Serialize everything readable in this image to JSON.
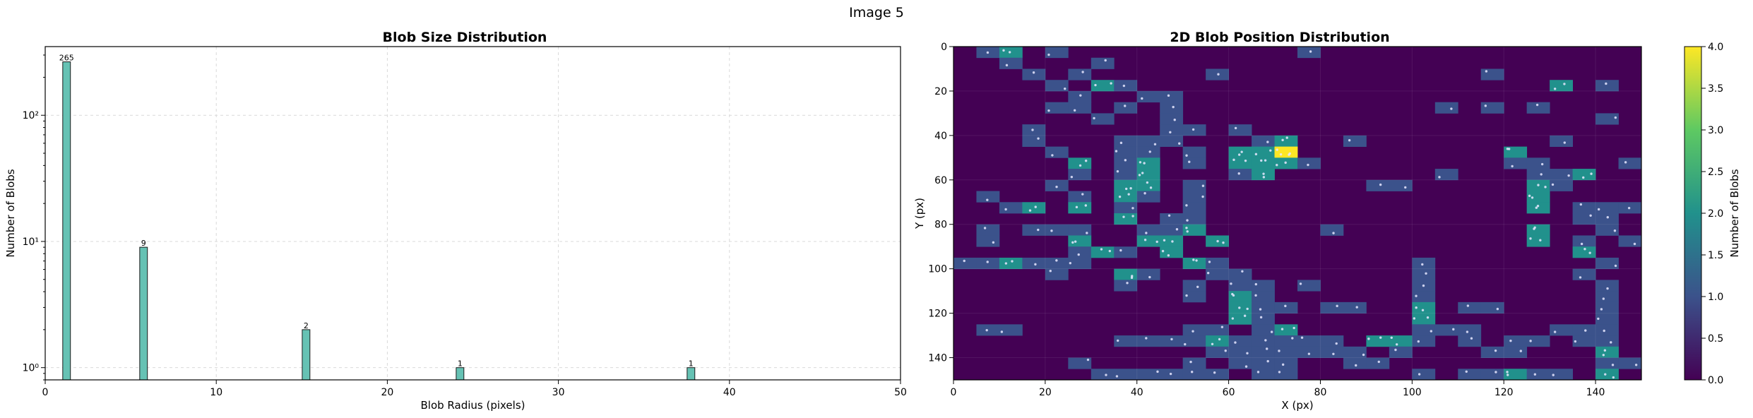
{
  "figure": {
    "suptitle": "Image 5"
  },
  "colors": {
    "bar_fill": "#66c2b4",
    "bar_edge": "#1a1a1a",
    "grid": "#d9d9d9",
    "dot": "#e8e8ff"
  },
  "chart_data": [
    {
      "type": "bar",
      "title": "Blob Size Distribution",
      "xlabel": "Blob Radius (pixels)",
      "ylabel": "Number of Blobs",
      "xlim": [
        0,
        50
      ],
      "ylim": [
        0.8,
        350
      ],
      "yscale": "log",
      "grid": true,
      "x_ticks": [
        0,
        10,
        20,
        30,
        40,
        50
      ],
      "y_ticks": [
        {
          "value": 1,
          "label": "10⁰"
        },
        {
          "value": 10,
          "label": "10¹"
        },
        {
          "value": 100,
          "label": "10²"
        }
      ],
      "bars": [
        {
          "x": 1.25,
          "value": 265,
          "label": "265"
        },
        {
          "x": 5.75,
          "value": 9,
          "label": "9"
        },
        {
          "x": 15.25,
          "value": 2,
          "label": "2"
        },
        {
          "x": 24.25,
          "value": 1,
          "label": "1"
        },
        {
          "x": 37.75,
          "value": 1,
          "label": "1"
        }
      ]
    },
    {
      "type": "heatmap",
      "title": "2D Blob Position Distribution",
      "xlabel": "X (px)",
      "ylabel": "Y (px)",
      "xlim": [
        0,
        150
      ],
      "ylim": [
        150,
        0
      ],
      "cell_size": 5,
      "x_ticks": [
        0,
        20,
        40,
        60,
        80,
        100,
        120,
        140
      ],
      "y_ticks": [
        0,
        20,
        40,
        60,
        80,
        100,
        120,
        140
      ],
      "colormap": "viridis",
      "colorbar": {
        "label": "Number of Blobs",
        "range": [
          0,
          4
        ],
        "ticks": [
          "0.0",
          "0.5",
          "1.0",
          "1.5",
          "2.0",
          "2.5",
          "3.0",
          "3.5",
          "4.0"
        ]
      },
      "cells": [
        [
          5,
          0,
          1
        ],
        [
          10,
          0,
          2
        ],
        [
          20,
          0,
          1
        ],
        [
          75,
          0,
          1
        ],
        [
          10,
          5,
          1
        ],
        [
          30,
          5,
          1
        ],
        [
          15,
          10,
          1
        ],
        [
          25,
          10,
          1
        ],
        [
          55,
          10,
          1
        ],
        [
          115,
          10,
          1
        ],
        [
          20,
          15,
          1
        ],
        [
          30,
          15,
          2
        ],
        [
          35,
          15,
          1
        ],
        [
          130,
          15,
          2
        ],
        [
          140,
          15,
          1
        ],
        [
          25,
          20,
          1
        ],
        [
          40,
          20,
          1
        ],
        [
          45,
          20,
          1
        ],
        [
          20,
          25,
          1
        ],
        [
          25,
          25,
          1
        ],
        [
          35,
          25,
          1
        ],
        [
          45,
          25,
          1
        ],
        [
          105,
          25,
          1
        ],
        [
          115,
          25,
          1
        ],
        [
          125,
          25,
          1
        ],
        [
          30,
          30,
          1
        ],
        [
          45,
          30,
          1
        ],
        [
          140,
          30,
          1
        ],
        [
          15,
          35,
          1
        ],
        [
          45,
          35,
          1
        ],
        [
          50,
          35,
          1
        ],
        [
          60,
          35,
          1
        ],
        [
          15,
          40,
          1
        ],
        [
          35,
          40,
          1
        ],
        [
          40,
          40,
          1
        ],
        [
          45,
          40,
          1
        ],
        [
          65,
          40,
          1
        ],
        [
          70,
          40,
          2
        ],
        [
          85,
          40,
          1
        ],
        [
          130,
          40,
          1
        ],
        [
          20,
          45,
          1
        ],
        [
          35,
          45,
          1
        ],
        [
          40,
          45,
          1
        ],
        [
          50,
          45,
          1
        ],
        [
          60,
          45,
          2
        ],
        [
          65,
          45,
          2
        ],
        [
          70,
          45,
          4
        ],
        [
          120,
          45,
          2
        ],
        [
          25,
          50,
          2
        ],
        [
          35,
          50,
          1
        ],
        [
          40,
          50,
          2
        ],
        [
          50,
          50,
          1
        ],
        [
          60,
          50,
          2
        ],
        [
          65,
          50,
          2
        ],
        [
          70,
          50,
          2
        ],
        [
          75,
          50,
          1
        ],
        [
          120,
          50,
          1
        ],
        [
          125,
          50,
          1
        ],
        [
          145,
          50,
          1
        ],
        [
          25,
          55,
          1
        ],
        [
          35,
          55,
          1
        ],
        [
          40,
          55,
          2
        ],
        [
          60,
          55,
          1
        ],
        [
          65,
          55,
          2
        ],
        [
          105,
          55,
          1
        ],
        [
          125,
          55,
          1
        ],
        [
          130,
          55,
          1
        ],
        [
          135,
          55,
          2
        ],
        [
          20,
          60,
          1
        ],
        [
          35,
          60,
          2
        ],
        [
          40,
          60,
          2
        ],
        [
          50,
          60,
          1
        ],
        [
          90,
          60,
          1
        ],
        [
          95,
          60,
          1
        ],
        [
          125,
          60,
          2
        ],
        [
          130,
          60,
          1
        ],
        [
          5,
          65,
          1
        ],
        [
          25,
          65,
          1
        ],
        [
          35,
          65,
          2
        ],
        [
          40,
          65,
          1
        ],
        [
          50,
          65,
          1
        ],
        [
          125,
          65,
          2
        ],
        [
          10,
          70,
          1
        ],
        [
          15,
          70,
          2
        ],
        [
          25,
          70,
          2
        ],
        [
          35,
          70,
          1
        ],
        [
          50,
          70,
          1
        ],
        [
          125,
          70,
          2
        ],
        [
          135,
          70,
          1
        ],
        [
          140,
          70,
          1
        ],
        [
          145,
          70,
          1
        ],
        [
          35,
          75,
          2
        ],
        [
          45,
          75,
          1
        ],
        [
          50,
          75,
          1
        ],
        [
          135,
          75,
          1
        ],
        [
          140,
          75,
          1
        ],
        [
          5,
          80,
          1
        ],
        [
          15,
          80,
          1
        ],
        [
          20,
          80,
          1
        ],
        [
          25,
          80,
          1
        ],
        [
          40,
          80,
          1
        ],
        [
          45,
          80,
          1
        ],
        [
          50,
          80,
          2
        ],
        [
          80,
          80,
          1
        ],
        [
          125,
          80,
          2
        ],
        [
          140,
          80,
          1
        ],
        [
          5,
          85,
          1
        ],
        [
          25,
          85,
          2
        ],
        [
          40,
          85,
          2
        ],
        [
          45,
          85,
          2
        ],
        [
          55,
          85,
          2
        ],
        [
          125,
          85,
          2
        ],
        [
          135,
          85,
          1
        ],
        [
          145,
          85,
          1
        ],
        [
          25,
          90,
          1
        ],
        [
          30,
          90,
          2
        ],
        [
          35,
          90,
          1
        ],
        [
          45,
          90,
          2
        ],
        [
          135,
          90,
          2
        ],
        [
          0,
          95,
          1
        ],
        [
          5,
          95,
          1
        ],
        [
          10,
          95,
          2
        ],
        [
          15,
          95,
          1
        ],
        [
          20,
          95,
          1
        ],
        [
          25,
          95,
          1
        ],
        [
          50,
          95,
          2
        ],
        [
          55,
          95,
          1
        ],
        [
          100,
          95,
          1
        ],
        [
          140,
          95,
          1
        ],
        [
          20,
          100,
          1
        ],
        [
          35,
          100,
          2
        ],
        [
          40,
          100,
          1
        ],
        [
          55,
          100,
          1
        ],
        [
          60,
          100,
          1
        ],
        [
          100,
          100,
          1
        ],
        [
          135,
          100,
          1
        ],
        [
          35,
          105,
          1
        ],
        [
          50,
          105,
          1
        ],
        [
          60,
          105,
          1
        ],
        [
          65,
          105,
          1
        ],
        [
          75,
          105,
          1
        ],
        [
          100,
          105,
          1
        ],
        [
          140,
          105,
          1
        ],
        [
          50,
          110,
          1
        ],
        [
          60,
          110,
          2
        ],
        [
          65,
          110,
          1
        ],
        [
          100,
          110,
          1
        ],
        [
          140,
          110,
          1
        ],
        [
          60,
          115,
          2
        ],
        [
          65,
          115,
          1
        ],
        [
          70,
          115,
          1
        ],
        [
          80,
          115,
          1
        ],
        [
          85,
          115,
          1
        ],
        [
          100,
          115,
          2
        ],
        [
          110,
          115,
          1
        ],
        [
          115,
          115,
          1
        ],
        [
          140,
          115,
          1
        ],
        [
          60,
          120,
          2
        ],
        [
          65,
          120,
          1
        ],
        [
          100,
          120,
          2
        ],
        [
          140,
          120,
          1
        ],
        [
          5,
          125,
          1
        ],
        [
          10,
          125,
          1
        ],
        [
          50,
          125,
          1
        ],
        [
          55,
          125,
          1
        ],
        [
          65,
          125,
          1
        ],
        [
          70,
          125,
          2
        ],
        [
          100,
          125,
          1
        ],
        [
          105,
          125,
          1
        ],
        [
          110,
          125,
          1
        ],
        [
          130,
          125,
          1
        ],
        [
          135,
          125,
          1
        ],
        [
          140,
          125,
          1
        ],
        [
          35,
          130,
          1
        ],
        [
          40,
          130,
          1
        ],
        [
          45,
          130,
          1
        ],
        [
          50,
          130,
          1
        ],
        [
          55,
          130,
          2
        ],
        [
          60,
          130,
          1
        ],
        [
          65,
          130,
          1
        ],
        [
          70,
          130,
          1
        ],
        [
          75,
          130,
          1
        ],
        [
          80,
          130,
          1
        ],
        [
          90,
          130,
          2
        ],
        [
          95,
          130,
          2
        ],
        [
          100,
          130,
          1
        ],
        [
          110,
          130,
          1
        ],
        [
          120,
          130,
          1
        ],
        [
          125,
          130,
          1
        ],
        [
          135,
          130,
          1
        ],
        [
          140,
          130,
          1
        ],
        [
          55,
          135,
          1
        ],
        [
          60,
          135,
          1
        ],
        [
          65,
          135,
          1
        ],
        [
          70,
          135,
          1
        ],
        [
          75,
          135,
          1
        ],
        [
          80,
          135,
          1
        ],
        [
          85,
          135,
          1
        ],
        [
          95,
          135,
          1
        ],
        [
          115,
          135,
          1
        ],
        [
          120,
          135,
          1
        ],
        [
          140,
          135,
          2
        ],
        [
          25,
          140,
          1
        ],
        [
          50,
          140,
          1
        ],
        [
          60,
          140,
          1
        ],
        [
          65,
          140,
          1
        ],
        [
          70,
          140,
          1
        ],
        [
          85,
          140,
          1
        ],
        [
          90,
          140,
          1
        ],
        [
          140,
          140,
          1
        ],
        [
          145,
          140,
          1
        ],
        [
          30,
          145,
          1
        ],
        [
          35,
          145,
          1
        ],
        [
          40,
          145,
          1
        ],
        [
          45,
          145,
          1
        ],
        [
          50,
          145,
          1
        ],
        [
          55,
          145,
          1
        ],
        [
          65,
          145,
          1
        ],
        [
          70,
          145,
          1
        ],
        [
          100,
          145,
          1
        ],
        [
          110,
          145,
          1
        ],
        [
          115,
          145,
          1
        ],
        [
          120,
          145,
          2
        ],
        [
          125,
          145,
          1
        ],
        [
          130,
          145,
          1
        ],
        [
          140,
          145,
          2
        ]
      ]
    }
  ]
}
